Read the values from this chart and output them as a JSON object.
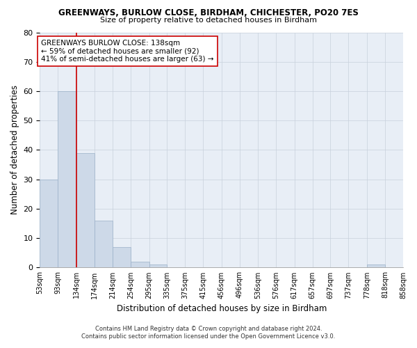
{
  "title1": "GREENWAYS, BURLOW CLOSE, BIRDHAM, CHICHESTER, PO20 7ES",
  "title2": "Size of property relative to detached houses in Birdham",
  "xlabel": "Distribution of detached houses by size in Birdham",
  "ylabel": "Number of detached properties",
  "footnote1": "Contains HM Land Registry data © Crown copyright and database right 2024.",
  "footnote2": "Contains public sector information licensed under the Open Government Licence v3.0.",
  "bin_edges": [
    53,
    93,
    134,
    174,
    214,
    254,
    295,
    335,
    375,
    415,
    456,
    496,
    536,
    576,
    617,
    657,
    697,
    737,
    778,
    818,
    858
  ],
  "bar_heights": [
    30,
    60,
    39,
    16,
    7,
    2,
    1,
    0,
    0,
    0,
    0,
    0,
    0,
    0,
    0,
    0,
    0,
    0,
    1,
    0,
    0
  ],
  "bar_color": "#cdd9e8",
  "bar_edge_color": "#9ab0c8",
  "grid_color": "#c8d0dc",
  "red_line_x": 134,
  "annotation_text1": "GREENWAYS BURLOW CLOSE: 138sqm",
  "annotation_text2": "← 59% of detached houses are smaller (92)",
  "annotation_text3": "41% of semi-detached houses are larger (63) →",
  "annotation_box_color": "white",
  "annotation_border_color": "#cc0000",
  "red_line_color": "#cc0000",
  "ylim": [
    0,
    80
  ],
  "yticks": [
    0,
    10,
    20,
    30,
    40,
    50,
    60,
    70,
    80
  ],
  "background_color": "white",
  "plot_bg_color": "#e8eef6"
}
